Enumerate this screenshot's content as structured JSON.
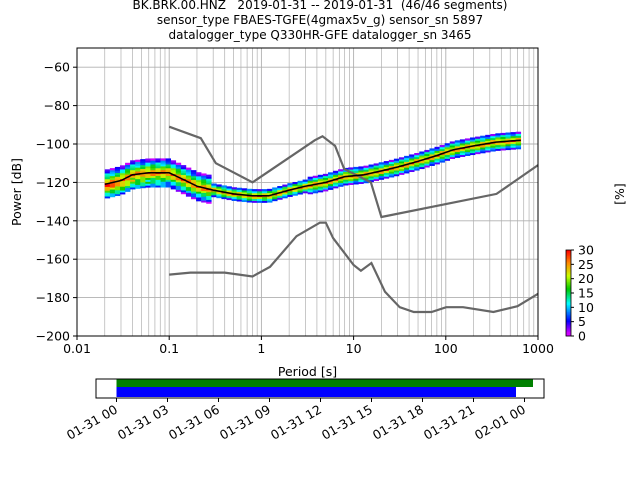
{
  "title_lines": [
    "BK.BRK.00.HNZ   2019-01-31 -- 2019-01-31  (46/46 segments)",
    "sensor_type FBAES-TGFE(4gmax5v_g) sensor_sn 5897",
    "datalogger_type Q330HR-GFE datalogger_sn 3465"
  ],
  "chart_data": [
    {
      "type": "heatmap",
      "xlabel": "Period [s]",
      "ylabel": "Power [dB]",
      "x_scale": "log",
      "xlim": [
        0.01,
        1000
      ],
      "ylim": [
        -200,
        -50
      ],
      "x_ticks": [
        0.01,
        0.1,
        1,
        10,
        100,
        1000
      ],
      "x_tick_labels": [
        "0.01",
        "0.1",
        "1",
        "10",
        "100",
        "1000"
      ],
      "y_ticks": [
        -200,
        -180,
        -160,
        -140,
        -120,
        -100,
        -80,
        -60
      ],
      "y_tick_labels": [
        "−200",
        "−180",
        "−160",
        "−140",
        "−120",
        "−100",
        "−80",
        "−60"
      ],
      "grid": true,
      "noise_models": {
        "color": "#666666",
        "high": [
          [
            0.1,
            -91
          ],
          [
            0.22,
            -97
          ],
          [
            0.32,
            -110
          ],
          [
            0.8,
            -120
          ],
          [
            3.8,
            -98
          ],
          [
            4.6,
            -96
          ],
          [
            6.3,
            -101
          ],
          [
            7.9,
            -113
          ],
          [
            15.4,
            -120
          ],
          [
            20,
            -138
          ],
          [
            354.8,
            -126
          ],
          [
            1000,
            -111
          ]
        ],
        "low": [
          [
            0.1,
            -168
          ],
          [
            0.17,
            -167
          ],
          [
            0.4,
            -167
          ],
          [
            0.8,
            -169
          ],
          [
            1.24,
            -164
          ],
          [
            2.4,
            -148
          ],
          [
            4.3,
            -141
          ],
          [
            5.0,
            -141
          ],
          [
            6.0,
            -149
          ],
          [
            10,
            -163
          ],
          [
            12,
            -166
          ],
          [
            15.6,
            -162
          ],
          [
            21.9,
            -177
          ],
          [
            31.6,
            -185
          ],
          [
            45,
            -187.5
          ],
          [
            70,
            -187.5
          ],
          [
            101,
            -185
          ],
          [
            154,
            -185
          ],
          [
            328,
            -187.5
          ],
          [
            600,
            -184.5
          ],
          [
            1000,
            -178
          ]
        ]
      },
      "psd_mode": {
        "color": "#000000",
        "points": [
          [
            0.02,
            -121
          ],
          [
            0.03,
            -119
          ],
          [
            0.04,
            -116
          ],
          [
            0.06,
            -115
          ],
          [
            0.1,
            -115
          ],
          [
            0.15,
            -119
          ],
          [
            0.2,
            -122
          ],
          [
            0.3,
            -124
          ],
          [
            0.5,
            -126
          ],
          [
            0.8,
            -127
          ],
          [
            1.2,
            -127
          ],
          [
            2,
            -124
          ],
          [
            3,
            -122
          ],
          [
            5,
            -120
          ],
          [
            8,
            -117
          ],
          [
            13,
            -116
          ],
          [
            20,
            -114
          ],
          [
            30,
            -112
          ],
          [
            50,
            -109
          ],
          [
            80,
            -106
          ],
          [
            120,
            -103
          ],
          [
            200,
            -101
          ],
          [
            350,
            -99
          ],
          [
            650,
            -98
          ]
        ]
      },
      "colorbar": {
        "label": "[%]",
        "ticks": [
          0,
          5,
          10,
          15,
          20,
          25,
          30
        ],
        "range": [
          0,
          30
        ],
        "colormap": "pqlx"
      }
    },
    {
      "type": "timeline",
      "x_tick_labels": [
        "01-31 00",
        "01-31 03",
        "01-31 06",
        "01-31 09",
        "01-31 12",
        "01-31 15",
        "01-31 18",
        "01-31 21",
        "02-01 00"
      ],
      "series": [
        {
          "color": "#008000",
          "start": "01-31 00:00",
          "end": "02-01 00:30"
        },
        {
          "color": "#0000ff",
          "start": "01-31 00:00",
          "end": "01-31 23:30"
        }
      ]
    }
  ]
}
